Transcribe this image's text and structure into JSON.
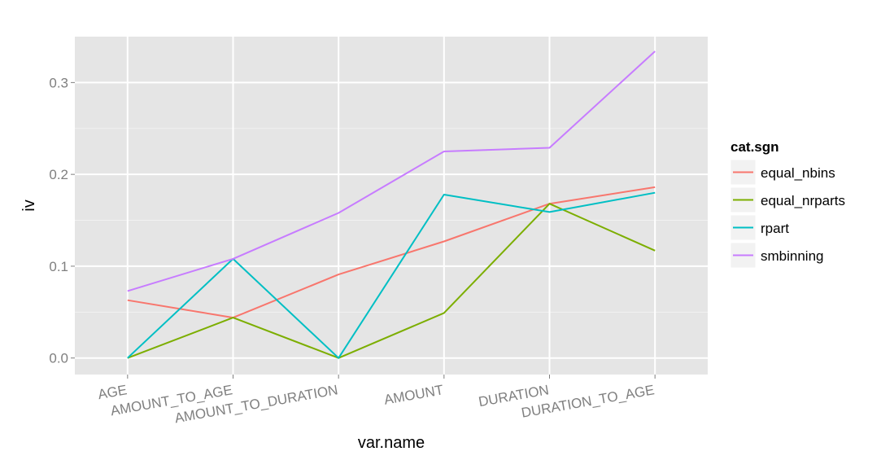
{
  "chart_data": {
    "type": "line",
    "title": "",
    "xlabel": "var.name",
    "ylabel": "iv",
    "categories": [
      "AGE",
      "AMOUNT_TO_AGE",
      "AMOUNT_TO_DURATION",
      "AMOUNT",
      "DURATION",
      "DURATION_TO_AGE"
    ],
    "yticks": [
      0.0,
      0.1,
      0.2,
      0.3
    ],
    "ytick_labels": [
      "0.0",
      "0.1",
      "0.2",
      "0.3"
    ],
    "ylim": [
      -0.018,
      0.35
    ],
    "grid": true,
    "legend": {
      "title": "cat.sgn",
      "position": "right"
    },
    "series": [
      {
        "name": "equal_nbins",
        "color": "#F8766D",
        "values": [
          0.063,
          0.044,
          0.091,
          0.127,
          0.168,
          0.186
        ]
      },
      {
        "name": "equal_nrparts",
        "color": "#7CAE00",
        "values": [
          0.0,
          0.044,
          0.0,
          0.049,
          0.168,
          0.117
        ]
      },
      {
        "name": "rpart",
        "color": "#00BFC4",
        "values": [
          0.0,
          0.108,
          0.0,
          0.178,
          0.159,
          0.18
        ]
      },
      {
        "name": "smbinning",
        "color": "#C77CFF",
        "values": [
          0.073,
          0.108,
          0.158,
          0.225,
          0.229,
          0.334
        ]
      }
    ]
  }
}
